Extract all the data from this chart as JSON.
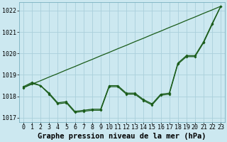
{
  "title": "Graphe pression niveau de la mer (hPa)",
  "bg_color": "#cce8f0",
  "grid_color": "#aacfdb",
  "line_color": "#1a5c1a",
  "x_values": [
    0,
    1,
    2,
    3,
    4,
    5,
    6,
    7,
    8,
    9,
    10,
    11,
    12,
    13,
    14,
    15,
    16,
    17,
    18,
    19,
    20,
    21,
    22,
    23
  ],
  "series_straight": [
    1018.4,
    1018.57,
    1018.73,
    1018.9,
    1019.06,
    1019.23,
    1019.39,
    1019.56,
    1019.72,
    1019.89,
    1020.05,
    1020.22,
    1020.38,
    1020.55,
    1020.71,
    1020.88,
    1021.04,
    1021.21,
    1021.37,
    1021.54,
    1021.7,
    1021.87,
    1022.03,
    1022.2
  ],
  "series_zigzag1": [
    1018.4,
    1018.6,
    1018.5,
    1018.1,
    1017.65,
    1017.7,
    1017.25,
    1017.3,
    1017.35,
    1017.35,
    1018.45,
    1018.45,
    1018.1,
    1018.1,
    1017.8,
    1017.6,
    1018.05,
    1018.1,
    1019.5,
    1019.85,
    1019.85,
    1020.5,
    1021.35,
    1022.2
  ],
  "series_zigzag2": [
    1018.45,
    1018.65,
    1018.5,
    1018.15,
    1017.7,
    1017.75,
    1017.3,
    1017.35,
    1017.4,
    1017.4,
    1018.5,
    1018.5,
    1018.15,
    1018.15,
    1017.85,
    1017.65,
    1018.1,
    1018.15,
    1019.55,
    1019.9,
    1019.9,
    1020.55,
    1021.4,
    1022.2
  ],
  "ylim": [
    1016.8,
    1022.4
  ],
  "yticks": [
    1017,
    1018,
    1019,
    1020,
    1021,
    1022
  ],
  "xlim": [
    -0.5,
    23.5
  ],
  "title_fontsize": 7.5,
  "tick_fontsize": 6.0
}
